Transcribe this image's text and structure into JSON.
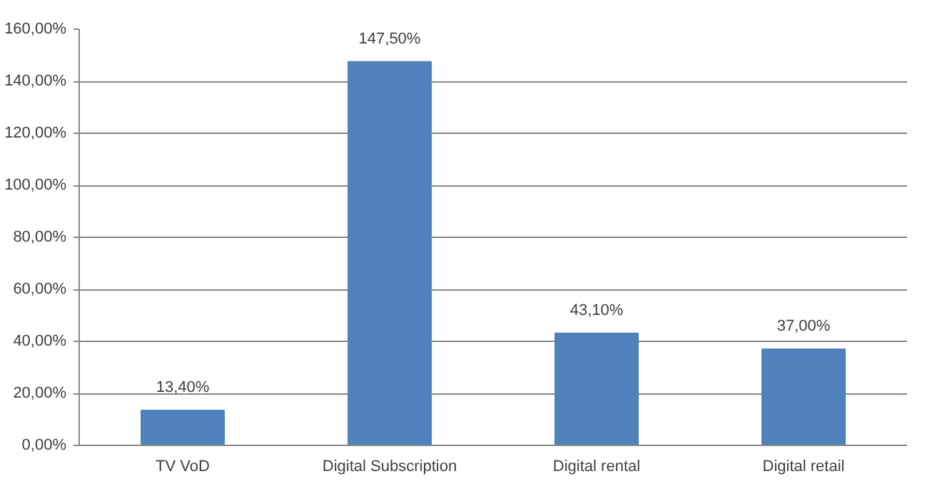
{
  "chart_data": {
    "type": "bar",
    "categories": [
      "TV VoD",
      "Digital Subscription",
      "Digital rental",
      "Digital retail"
    ],
    "values": [
      13.4,
      147.5,
      43.1,
      37.0
    ],
    "value_labels": [
      "13,40%",
      "147,50%",
      "43,10%",
      "37,00%"
    ],
    "color": "#4f81bd",
    "ylim": [
      0,
      160
    ],
    "yticks": [
      {
        "value": 0,
        "label": "0,00%"
      },
      {
        "value": 20,
        "label": "20,00%"
      },
      {
        "value": 40,
        "label": "40,00%"
      },
      {
        "value": 60,
        "label": "60,00%"
      },
      {
        "value": 80,
        "label": "80,00%"
      },
      {
        "value": 100,
        "label": "100,00%"
      },
      {
        "value": 120,
        "label": "120,00%"
      },
      {
        "value": 140,
        "label": "140,00%"
      },
      {
        "value": 160,
        "label": "160,00%"
      }
    ],
    "grid": "y"
  }
}
